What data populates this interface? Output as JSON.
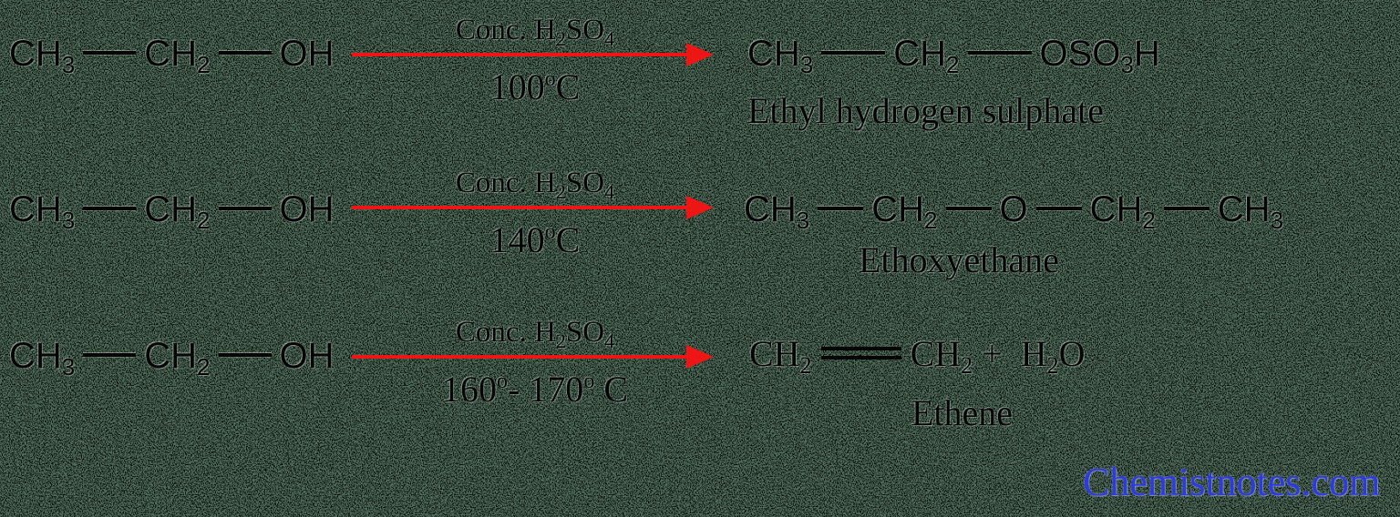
{
  "canvas": {
    "bg_color": "#4e6c59",
    "ink_color": "#050505",
    "noise_color": "#000000"
  },
  "arrow_color": "#ee1515",
  "watermark": {
    "text": "Chemistnotes.com",
    "color": "#2c3ae0"
  },
  "reactions": [
    {
      "reactant": [
        {
          "t": "CH"
        },
        {
          "s": "3"
        },
        {
          "b": 58
        },
        {
          "t": "CH"
        },
        {
          "s": "2"
        },
        {
          "b": 58
        },
        {
          "t": "OH"
        }
      ],
      "condition_top": [
        {
          "t": "Conc. H"
        },
        {
          "s": "2"
        },
        {
          "t": "SO"
        },
        {
          "s": "4"
        }
      ],
      "condition_bottom": [
        {
          "t": "100"
        },
        {
          "p": "o"
        },
        {
          "t": "C"
        }
      ],
      "product": [
        {
          "t": "CH"
        },
        {
          "s": "3"
        },
        {
          "b": 70
        },
        {
          "t": "CH"
        },
        {
          "s": "2"
        },
        {
          "b": 70
        },
        {
          "t": "OSO"
        },
        {
          "s": "3"
        },
        {
          "t": "H"
        }
      ],
      "product_name": "Ethyl hydrogen sulphate"
    },
    {
      "reactant": [
        {
          "t": "CH"
        },
        {
          "s": "3"
        },
        {
          "b": 58
        },
        {
          "t": "CH"
        },
        {
          "s": "2"
        },
        {
          "b": 58
        },
        {
          "t": "OH"
        }
      ],
      "condition_top": [
        {
          "t": "Conc. H"
        },
        {
          "s": "2"
        },
        {
          "t": "SO"
        },
        {
          "s": "4"
        }
      ],
      "condition_bottom": [
        {
          "t": "140"
        },
        {
          "p": "o"
        },
        {
          "t": "C"
        }
      ],
      "product": [
        {
          "t": "CH"
        },
        {
          "s": "3"
        },
        {
          "b": 50
        },
        {
          "t": "CH"
        },
        {
          "s": "2"
        },
        {
          "b": 50
        },
        {
          "t": "O"
        },
        {
          "b": 50
        },
        {
          "t": "CH"
        },
        {
          "s": "2"
        },
        {
          "b": 50
        },
        {
          "t": "CH"
        },
        {
          "s": "3"
        }
      ],
      "product_name": "Ethoxyethane"
    },
    {
      "reactant": [
        {
          "t": "CH"
        },
        {
          "s": "3"
        },
        {
          "b": 58
        },
        {
          "t": "CH"
        },
        {
          "s": "2"
        },
        {
          "b": 58
        },
        {
          "t": "OH"
        }
      ],
      "condition_top": [
        {
          "t": "Conc. H"
        },
        {
          "s": "2"
        },
        {
          "t": "SO"
        },
        {
          "s": "4"
        }
      ],
      "condition_bottom": [
        {
          "t": "160"
        },
        {
          "p": "o"
        },
        {
          "t": "- 170"
        },
        {
          "p": "o"
        },
        {
          "t": " C"
        }
      ],
      "product": [
        {
          "t": "CH"
        },
        {
          "s": "2"
        },
        {
          "d": 88
        },
        {
          "t": "CH"
        },
        {
          "s": "2"
        },
        {
          "t": " +  H"
        },
        {
          "s": "2"
        },
        {
          "t": "O"
        }
      ],
      "product_name": "Ethene"
    }
  ]
}
